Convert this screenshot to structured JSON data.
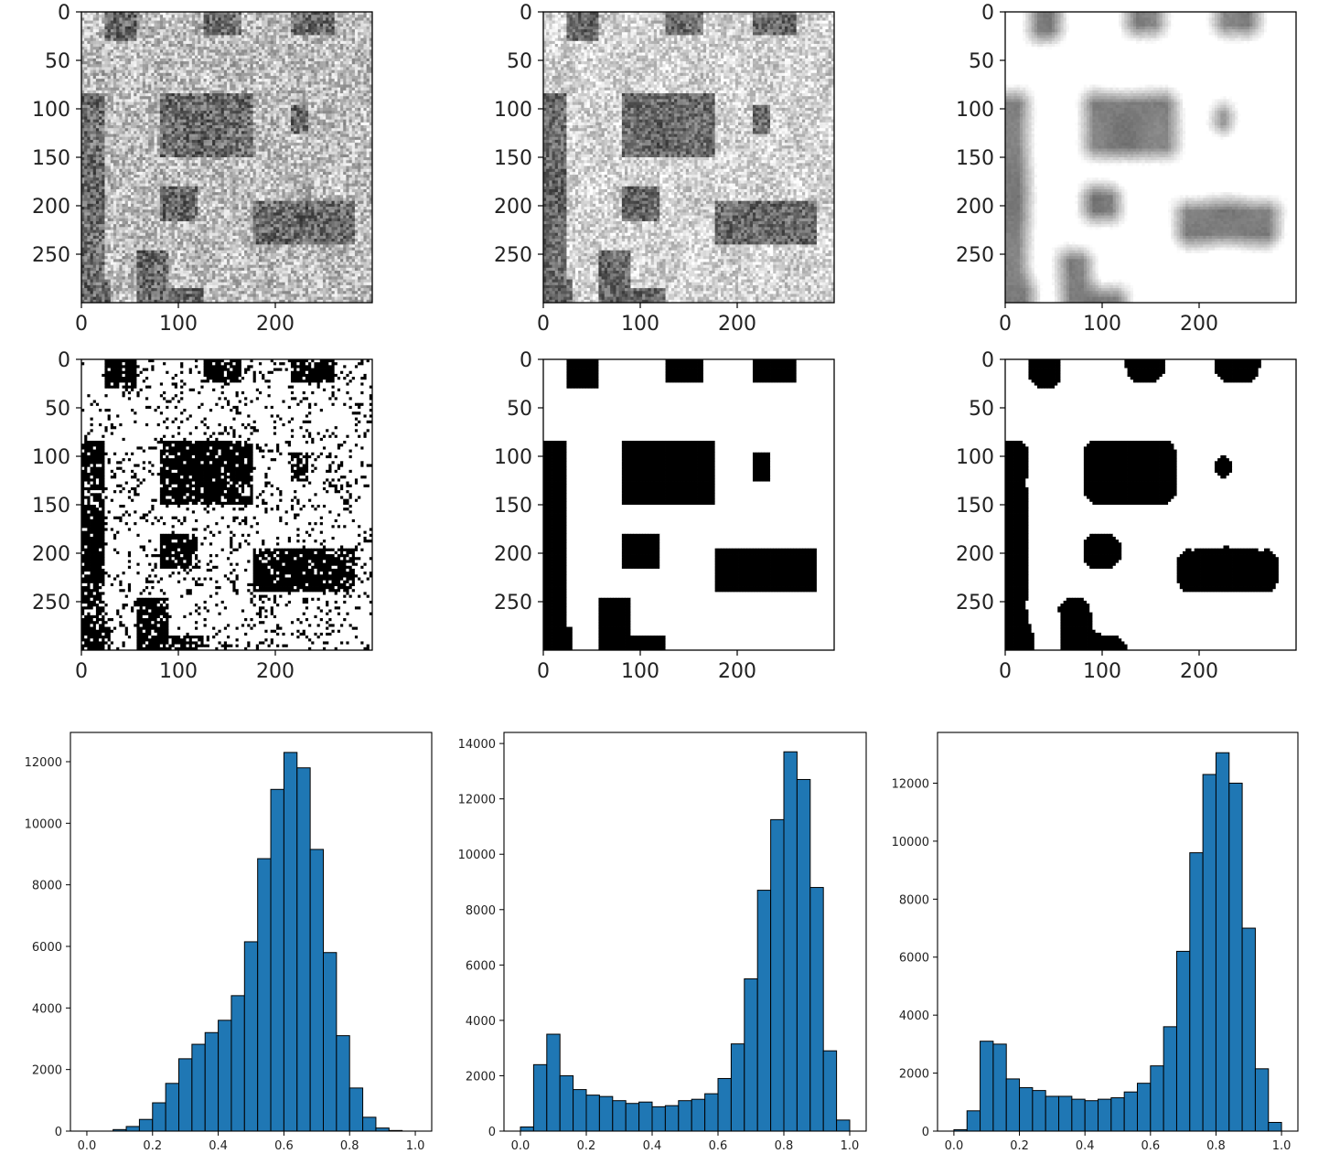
{
  "chart_data": [
    {
      "type": "heatmap",
      "panel": "image-panel-1",
      "colormap": "gray",
      "render": {
        "kind": "gray-texture",
        "base": 0.58,
        "contrast": 0.5,
        "noise": 0.55,
        "blur": 0
      },
      "xticks": [
        0,
        100,
        200
      ],
      "yticks": [
        0,
        50,
        100,
        150,
        200,
        250
      ],
      "xlim": [
        0,
        300
      ],
      "ylim": [
        300,
        0
      ]
    },
    {
      "type": "heatmap",
      "panel": "image-panel-2",
      "colormap": "gray",
      "render": {
        "kind": "gray-texture",
        "base": 0.62,
        "contrast": 0.65,
        "noise": 0.45,
        "blur": 0
      },
      "xticks": [
        0,
        100,
        200
      ],
      "yticks": [
        0,
        50,
        100,
        150,
        200,
        250
      ],
      "xlim": [
        0,
        300
      ],
      "ylim": [
        300,
        0
      ]
    },
    {
      "type": "heatmap",
      "panel": "image-panel-3",
      "colormap": "gray",
      "render": {
        "kind": "gray-texture",
        "base": 0.78,
        "contrast": 0.9,
        "noise": 0.06,
        "blur": 2.5
      },
      "xticks": [
        0,
        100,
        200
      ],
      "yticks": [
        0,
        50,
        100,
        150,
        200,
        250
      ],
      "xlim": [
        0,
        300
      ],
      "ylim": [
        300,
        0
      ]
    },
    {
      "type": "heatmap",
      "panel": "image-panel-4",
      "colormap": "binary",
      "render": {
        "kind": "binary",
        "threshold": 0.5,
        "noise": 0.55,
        "blur": 0
      },
      "xticks": [
        0,
        100,
        200
      ],
      "yticks": [
        0,
        50,
        100,
        150,
        200,
        250
      ],
      "xlim": [
        0,
        300
      ],
      "ylim": [
        300,
        0
      ]
    },
    {
      "type": "heatmap",
      "panel": "image-panel-5",
      "colormap": "binary",
      "render": {
        "kind": "binary",
        "threshold": 0.5,
        "noise": 0.3,
        "blur": 0
      },
      "xticks": [
        0,
        100,
        200
      ],
      "yticks": [
        0,
        50,
        100,
        150,
        200,
        250
      ],
      "xlim": [
        0,
        300
      ],
      "ylim": [
        300,
        0
      ]
    },
    {
      "type": "heatmap",
      "panel": "image-panel-6",
      "colormap": "binary",
      "render": {
        "kind": "binary",
        "threshold": 0.5,
        "noise": 0.0,
        "blur": 3
      },
      "xticks": [
        0,
        100,
        200
      ],
      "yticks": [
        0,
        50,
        100,
        150,
        200,
        250
      ],
      "xlim": [
        0,
        300
      ],
      "ylim": [
        300,
        0
      ]
    },
    {
      "type": "bar",
      "panel": "histogram-1",
      "bar_color": "#1f77b4",
      "bin_start": 0.0,
      "bin_width": 0.04,
      "values": [
        0,
        0,
        50,
        150,
        380,
        920,
        1550,
        2350,
        2820,
        3200,
        3600,
        4400,
        6150,
        8850,
        11100,
        12300,
        11800,
        9150,
        5800,
        3100,
        1400,
        450,
        100,
        20,
        0
      ],
      "xlim": [
        -0.05,
        1.05
      ],
      "ylim": [
        0,
        12950
      ],
      "xticks": [
        0.0,
        0.2,
        0.4,
        0.6,
        0.8,
        1.0
      ],
      "xtick_labels": [
        "0.0",
        "0.2",
        "0.4",
        "0.6",
        "0.8",
        "1.0"
      ],
      "yticks": [
        0,
        2000,
        4000,
        6000,
        8000,
        10000,
        12000
      ],
      "ytick_labels": [
        "0",
        "2000",
        "4000",
        "6000",
        "8000",
        "10000",
        "12000"
      ]
    },
    {
      "type": "bar",
      "panel": "histogram-2",
      "bar_color": "#1f77b4",
      "bin_start": 0.0,
      "bin_width": 0.04,
      "values": [
        150,
        2400,
        3500,
        2000,
        1500,
        1300,
        1250,
        1100,
        1000,
        1050,
        880,
        920,
        1100,
        1150,
        1350,
        1900,
        3150,
        5500,
        8700,
        11250,
        13700,
        12700,
        8800,
        2900,
        400
      ],
      "xlim": [
        -0.05,
        1.05
      ],
      "ylim": [
        0,
        14400
      ],
      "xticks": [
        0.0,
        0.2,
        0.4,
        0.6,
        0.8,
        1.0
      ],
      "xtick_labels": [
        "0.0",
        "0.2",
        "0.4",
        "0.6",
        "0.8",
        "1.0"
      ],
      "yticks": [
        0,
        2000,
        4000,
        6000,
        8000,
        10000,
        12000,
        14000
      ],
      "ytick_labels": [
        "0",
        "2000",
        "4000",
        "6000",
        "8000",
        "10000",
        "12000",
        "14000"
      ]
    },
    {
      "type": "bar",
      "panel": "histogram-3",
      "bar_color": "#1f77b4",
      "bin_start": 0.0,
      "bin_width": 0.04,
      "values": [
        50,
        700,
        3100,
        3000,
        1800,
        1500,
        1400,
        1200,
        1200,
        1100,
        1050,
        1100,
        1150,
        1350,
        1650,
        2250,
        3600,
        6200,
        9600,
        12300,
        13050,
        12000,
        7000,
        2150,
        300
      ],
      "xlim": [
        -0.05,
        1.05
      ],
      "ylim": [
        0,
        13750
      ],
      "xticks": [
        0.0,
        0.2,
        0.4,
        0.6,
        0.8,
        1.0
      ],
      "xtick_labels": [
        "0.0",
        "0.2",
        "0.4",
        "0.6",
        "0.8",
        "1.0"
      ],
      "yticks": [
        0,
        2000,
        4000,
        6000,
        8000,
        10000,
        12000
      ],
      "ytick_labels": [
        "0",
        "2000",
        "4000",
        "6000",
        "8000",
        "10000",
        "12000"
      ]
    }
  ]
}
